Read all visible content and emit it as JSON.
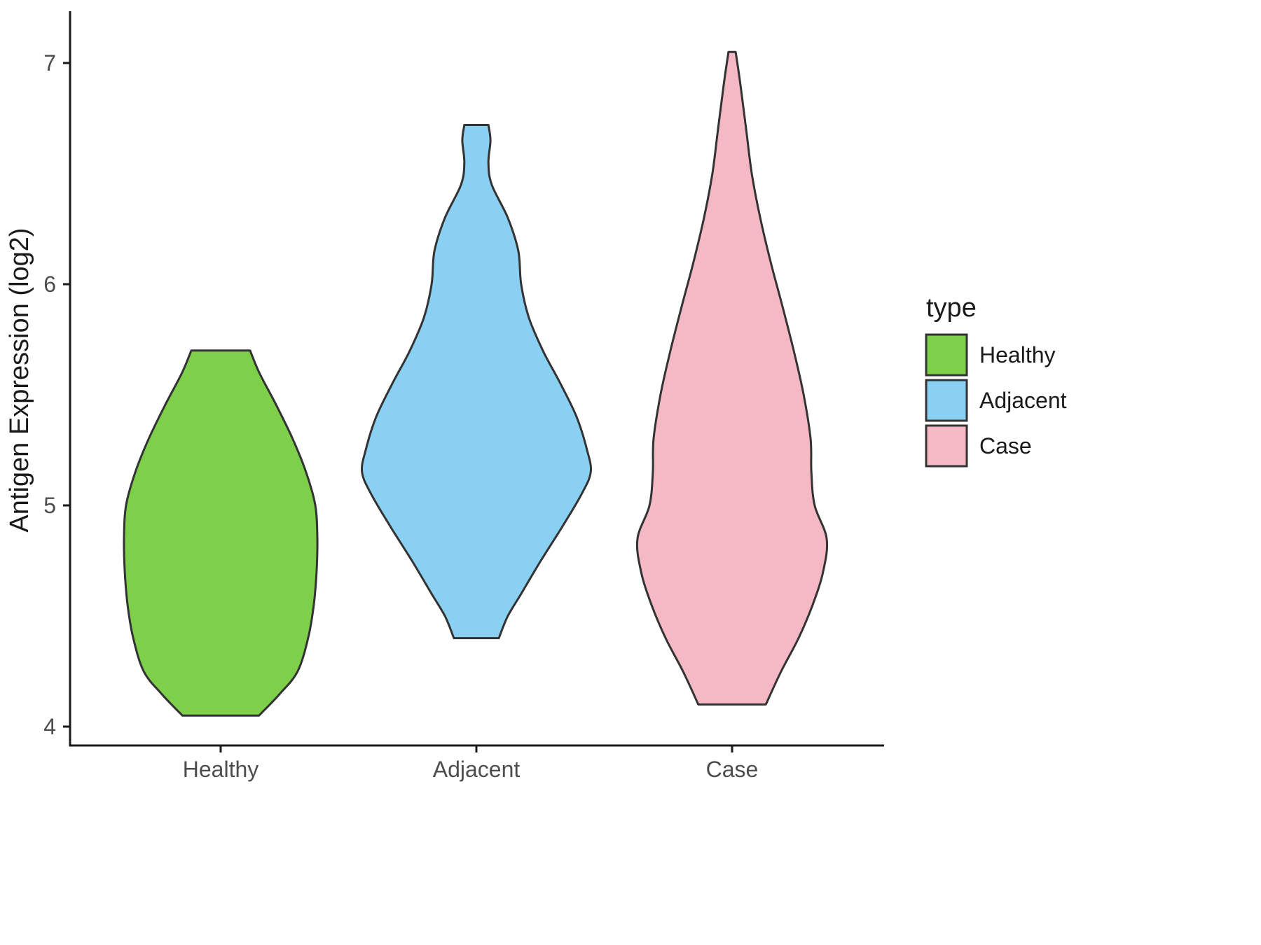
{
  "chart_data": {
    "type": "violin",
    "title": "",
    "xlabel": "",
    "ylabel": "Antigen Expression (log2)",
    "ylim": [
      4,
      7.1
    ],
    "y_ticks": [
      "4",
      "5",
      "6",
      "7"
    ],
    "y_tick_values": [
      4,
      5,
      6,
      7
    ],
    "categories": [
      "Healthy",
      "Adjacent",
      "Case"
    ],
    "grid": false,
    "background": "#ffffff",
    "outline_color": "#333333",
    "axis_color": "#1a1a1a",
    "tick_label_color": "#4d4d4d",
    "legend": {
      "title": "type",
      "position": "right",
      "entries": [
        "Healthy",
        "Adjacent",
        "Case"
      ]
    },
    "series": [
      {
        "name": "Healthy",
        "color": "#7ED04B",
        "y_range": [
          4.05,
          5.7
        ],
        "profile": [
          [
            4.05,
            0.15
          ],
          [
            4.15,
            0.233
          ],
          [
            4.25,
            0.301
          ],
          [
            4.4,
            0.342
          ],
          [
            4.55,
            0.364
          ],
          [
            4.7,
            0.375
          ],
          [
            4.85,
            0.378
          ],
          [
            5.0,
            0.37
          ],
          [
            5.15,
            0.334
          ],
          [
            5.3,
            0.282
          ],
          [
            5.45,
            0.219
          ],
          [
            5.6,
            0.151
          ],
          [
            5.7,
            0.115
          ]
        ]
      },
      {
        "name": "Adjacent",
        "color": "#8AD0F2",
        "y_range": [
          4.4,
          6.72
        ],
        "profile": [
          [
            4.4,
            0.088
          ],
          [
            4.5,
            0.123
          ],
          [
            4.6,
            0.175
          ],
          [
            4.75,
            0.252
          ],
          [
            4.9,
            0.334
          ],
          [
            5.05,
            0.411
          ],
          [
            5.15,
            0.447
          ],
          [
            5.25,
            0.433
          ],
          [
            5.4,
            0.392
          ],
          [
            5.55,
            0.329
          ],
          [
            5.7,
            0.26
          ],
          [
            5.85,
            0.205
          ],
          [
            6.0,
            0.175
          ],
          [
            6.15,
            0.164
          ],
          [
            6.3,
            0.123
          ],
          [
            6.45,
            0.06
          ],
          [
            6.55,
            0.047
          ],
          [
            6.65,
            0.055
          ],
          [
            6.72,
            0.047
          ]
        ]
      },
      {
        "name": "Case",
        "color": "#F4B9C4",
        "y_range": [
          4.1,
          7.05
        ],
        "profile": [
          [
            4.1,
            0.132
          ],
          [
            4.25,
            0.192
          ],
          [
            4.4,
            0.26
          ],
          [
            4.55,
            0.315
          ],
          [
            4.7,
            0.356
          ],
          [
            4.85,
            0.37
          ],
          [
            5.0,
            0.323
          ],
          [
            5.15,
            0.31
          ],
          [
            5.3,
            0.307
          ],
          [
            5.5,
            0.28
          ],
          [
            5.7,
            0.241
          ],
          [
            5.9,
            0.197
          ],
          [
            6.1,
            0.151
          ],
          [
            6.3,
            0.11
          ],
          [
            6.5,
            0.077
          ],
          [
            6.7,
            0.055
          ],
          [
            6.9,
            0.033
          ],
          [
            7.05,
            0.014
          ]
        ]
      }
    ]
  }
}
